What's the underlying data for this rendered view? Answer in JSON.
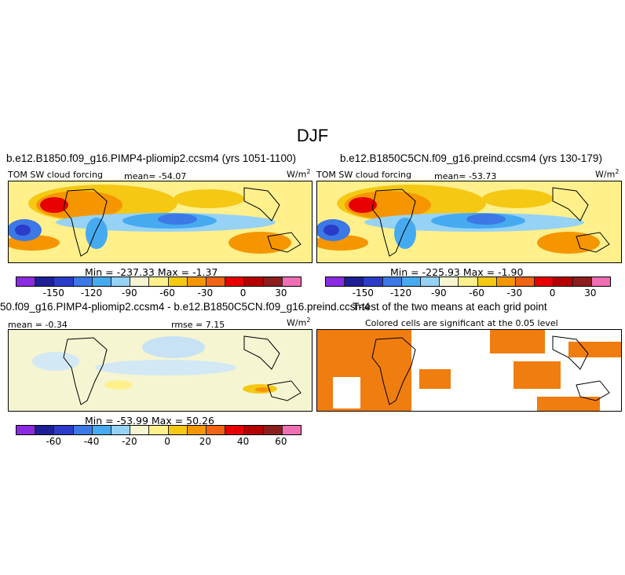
{
  "title": "DJF",
  "panels": {
    "top_left": {
      "header": "b.e12.B1850.f09_g16.PIMP4-pliomip2.ccsm4 (yrs 1051-1100)",
      "variable": "TOM SW cloud forcing",
      "mean": "mean= -54.07",
      "units": "W/m",
      "units_sup": "2",
      "minmax": "Min = -237.33  Max = -1.37"
    },
    "top_right": {
      "header": "b.e12.B1850C5CN.f09_g16.preind.ccsm4 (yrs 130-179)",
      "variable": "TOM SW cloud forcing",
      "mean": "mean= -53.73",
      "units": "W/m",
      "units_sup": "2",
      "minmax": "Min = -225.93  Max = -1.90"
    },
    "bottom_left": {
      "header": "50.f09_g16.PIMP4-pliomip2.ccsm4 - b.e12.B1850C5CN.f09_g16.preind.ccsm4",
      "mean": "mean = -0.34",
      "rmse": "rmse = 7.15",
      "units": "W/m",
      "units_sup": "2",
      "minmax": "Min = -53.99  Max = 50.26"
    },
    "bottom_right": {
      "header": "T-test of the two means at each grid point",
      "subtitle": "Colored cells are significant at the 0.05 level"
    }
  },
  "colorbars": {
    "abs_ticks": [
      "-150",
      "-120",
      "-90",
      "-60",
      "-30",
      "0",
      "30"
    ],
    "diff_ticks": [
      "-60",
      "-40",
      "-20",
      "0",
      "20",
      "40",
      "60"
    ],
    "colors": [
      "#8a2be2",
      "#1e1e96",
      "#2a3cc8",
      "#3c78e6",
      "#46aaf0",
      "#96d2f5",
      "#f5f5d2",
      "#fff08c",
      "#f5c814",
      "#f59600",
      "#f06414",
      "#e60000",
      "#b40000",
      "#8c1e1e",
      "#f06eb4"
    ]
  },
  "colors": {
    "significance": "#f07d10"
  }
}
